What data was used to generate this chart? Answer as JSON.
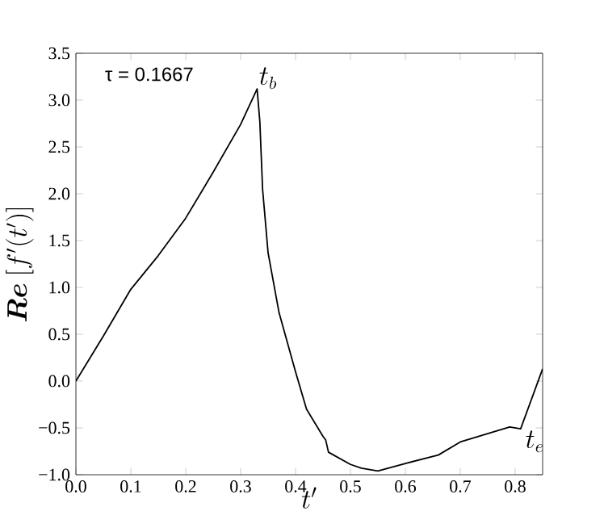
{
  "chart_data": {
    "type": "line",
    "xlabel": "t'",
    "ylabel": "\\boldsymbol{Re}\\ [f'(t')]",
    "x": [
      0,
      0.05,
      0.1,
      0.15,
      0.2,
      0.25,
      0.3,
      0.33,
      0.335,
      0.34,
      0.35,
      0.37,
      0.4,
      0.42,
      0.45,
      0.455,
      0.46,
      0.5,
      0.52,
      0.55,
      0.6,
      0.66,
      0.7,
      0.79,
      0.81,
      0.85
    ],
    "series": [
      {
        "color": "#000000",
        "values": [
          0,
          0.48,
          0.98,
          1.34,
          1.74,
          2.23,
          2.74,
          3.12,
          2.77,
          2.05,
          1.37,
          0.73,
          0.1,
          -0.3,
          -0.59,
          -0.63,
          -0.76,
          -0.89,
          -0.93,
          -0.96,
          -0.88,
          -0.79,
          -0.65,
          -0.49,
          -0.51,
          0.13
        ]
      }
    ],
    "xlim": [
      0,
      0.85
    ],
    "ylim": [
      -1,
      3.5
    ],
    "xticks": [
      {
        "value": 0,
        "label": "0.0"
      },
      {
        "value": 0.1,
        "label": "0.1"
      },
      {
        "value": 0.2,
        "label": "0.2"
      },
      {
        "value": 0.3,
        "label": "0.3"
      },
      {
        "value": 0.4,
        "label": "0.4"
      },
      {
        "value": 0.5,
        "label": "0.5"
      },
      {
        "value": 0.6,
        "label": "0.6"
      },
      {
        "value": 0.7,
        "label": "0.7"
      },
      {
        "value": 0.8,
        "label": "0.8"
      }
    ],
    "yticks": [
      {
        "value": -1,
        "label": "−1.0"
      },
      {
        "value": -0.5,
        "label": "−0.5"
      },
      {
        "value": 0,
        "label": "0.0"
      },
      {
        "value": 0.5,
        "label": "0.5"
      },
      {
        "value": 1,
        "label": "1.0"
      },
      {
        "value": 1.5,
        "label": "1.5"
      },
      {
        "value": 2,
        "label": "2.0"
      },
      {
        "value": 2.5,
        "label": "2.5"
      },
      {
        "value": 3,
        "label": "3.0"
      },
      {
        "value": 3.5,
        "label": "3.5"
      }
    ],
    "annotations": [
      "τ = 0.1667",
      {
        "text": "t_b",
        "x": 0.33,
        "y": 3.1
      },
      {
        "text": "t_e",
        "x": 0.815,
        "y": -0.51
      }
    ],
    "grid": false,
    "marker": "none",
    "line_style": "solid"
  }
}
